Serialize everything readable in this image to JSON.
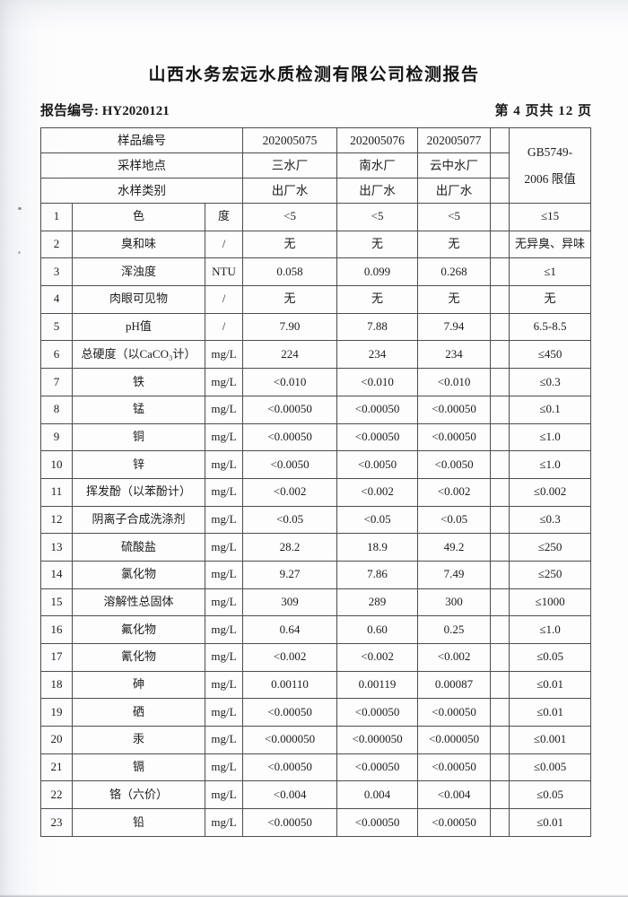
{
  "page": {
    "title": "山西水务宏远水质检测有限公司检测报告",
    "report_no_label": "报告编号: ",
    "report_no": "HY2020121",
    "page_indicator": "第 4 页共 12 页"
  },
  "table": {
    "header": {
      "sample_no_label": "样品编号",
      "location_label": "采样地点",
      "type_label": "水样类别",
      "samples": [
        "202005075",
        "202005076",
        "202005077"
      ],
      "locations": [
        "三水厂",
        "南水厂",
        "云中水厂"
      ],
      "types": [
        "出厂水",
        "出厂水",
        "出厂水"
      ],
      "limit_line1": "GB5749-",
      "limit_line2": "2006 限值"
    },
    "rows": [
      {
        "no": "1",
        "param": "色",
        "unit": "度",
        "v": [
          "<5",
          "<5",
          "<5"
        ],
        "limit": "≤15"
      },
      {
        "no": "2",
        "param": "臭和味",
        "unit": "/",
        "v": [
          "无",
          "无",
          "无"
        ],
        "limit": "无异臭、异味"
      },
      {
        "no": "3",
        "param": "浑浊度",
        "unit": "NTU",
        "v": [
          "0.058",
          "0.099",
          "0.268"
        ],
        "limit": "≤1"
      },
      {
        "no": "4",
        "param": "肉眼可见物",
        "unit": "/",
        "v": [
          "无",
          "无",
          "无"
        ],
        "limit": "无"
      },
      {
        "no": "5",
        "param": "pH值",
        "unit": "/",
        "v": [
          "7.90",
          "7.88",
          "7.94"
        ],
        "limit": "6.5-8.5"
      },
      {
        "no": "6",
        "param": "总硬度（以CaCO₃计）",
        "unit": "mg/L",
        "v": [
          "224",
          "234",
          "234"
        ],
        "limit": "≤450"
      },
      {
        "no": "7",
        "param": "铁",
        "unit": "mg/L",
        "v": [
          "<0.010",
          "<0.010",
          "<0.010"
        ],
        "limit": "≤0.3"
      },
      {
        "no": "8",
        "param": "锰",
        "unit": "mg/L",
        "v": [
          "<0.00050",
          "<0.00050",
          "<0.00050"
        ],
        "limit": "≤0.1"
      },
      {
        "no": "9",
        "param": "铜",
        "unit": "mg/L",
        "v": [
          "<0.00050",
          "<0.00050",
          "<0.00050"
        ],
        "limit": "≤1.0"
      },
      {
        "no": "10",
        "param": "锌",
        "unit": "mg/L",
        "v": [
          "<0.0050",
          "<0.0050",
          "<0.0050"
        ],
        "limit": "≤1.0"
      },
      {
        "no": "11",
        "param": "挥发酚（以苯酚计）",
        "unit": "mg/L",
        "v": [
          "<0.002",
          "<0.002",
          "<0.002"
        ],
        "limit": "≤0.002"
      },
      {
        "no": "12",
        "param": "阴离子合成洗涤剂",
        "unit": "mg/L",
        "v": [
          "<0.05",
          "<0.05",
          "<0.05"
        ],
        "limit": "≤0.3"
      },
      {
        "no": "13",
        "param": "硫酸盐",
        "unit": "mg/L",
        "v": [
          "28.2",
          "18.9",
          "49.2"
        ],
        "limit": "≤250"
      },
      {
        "no": "14",
        "param": "氯化物",
        "unit": "mg/L",
        "v": [
          "9.27",
          "7.86",
          "7.49"
        ],
        "limit": "≤250"
      },
      {
        "no": "15",
        "param": "溶解性总固体",
        "unit": "mg/L",
        "v": [
          "309",
          "289",
          "300"
        ],
        "limit": "≤1000"
      },
      {
        "no": "16",
        "param": "氟化物",
        "unit": "mg/L",
        "v": [
          "0.64",
          "0.60",
          "0.25"
        ],
        "limit": "≤1.0"
      },
      {
        "no": "17",
        "param": "氰化物",
        "unit": "mg/L",
        "v": [
          "<0.002",
          "<0.002",
          "<0.002"
        ],
        "limit": "≤0.05"
      },
      {
        "no": "18",
        "param": "砷",
        "unit": "mg/L",
        "v": [
          "0.00110",
          "0.00119",
          "0.00087"
        ],
        "limit": "≤0.01"
      },
      {
        "no": "19",
        "param": "硒",
        "unit": "mg/L",
        "v": [
          "<0.00050",
          "<0.00050",
          "<0.00050"
        ],
        "limit": "≤0.01"
      },
      {
        "no": "20",
        "param": "汞",
        "unit": "mg/L",
        "v": [
          "<0.000050",
          "<0.000050",
          "<0.000050"
        ],
        "limit": "≤0.001"
      },
      {
        "no": "21",
        "param": "镉",
        "unit": "mg/L",
        "v": [
          "<0.00050",
          "<0.00050",
          "<0.00050"
        ],
        "limit": "≤0.005"
      },
      {
        "no": "22",
        "param": "铬（六价）",
        "unit": "mg/L",
        "v": [
          "<0.004",
          "0.004",
          "<0.004"
        ],
        "limit": "≤0.05"
      },
      {
        "no": "23",
        "param": "铅",
        "unit": "mg/L",
        "v": [
          "<0.00050",
          "<0.00050",
          "<0.00050"
        ],
        "limit": "≤0.01"
      }
    ]
  }
}
